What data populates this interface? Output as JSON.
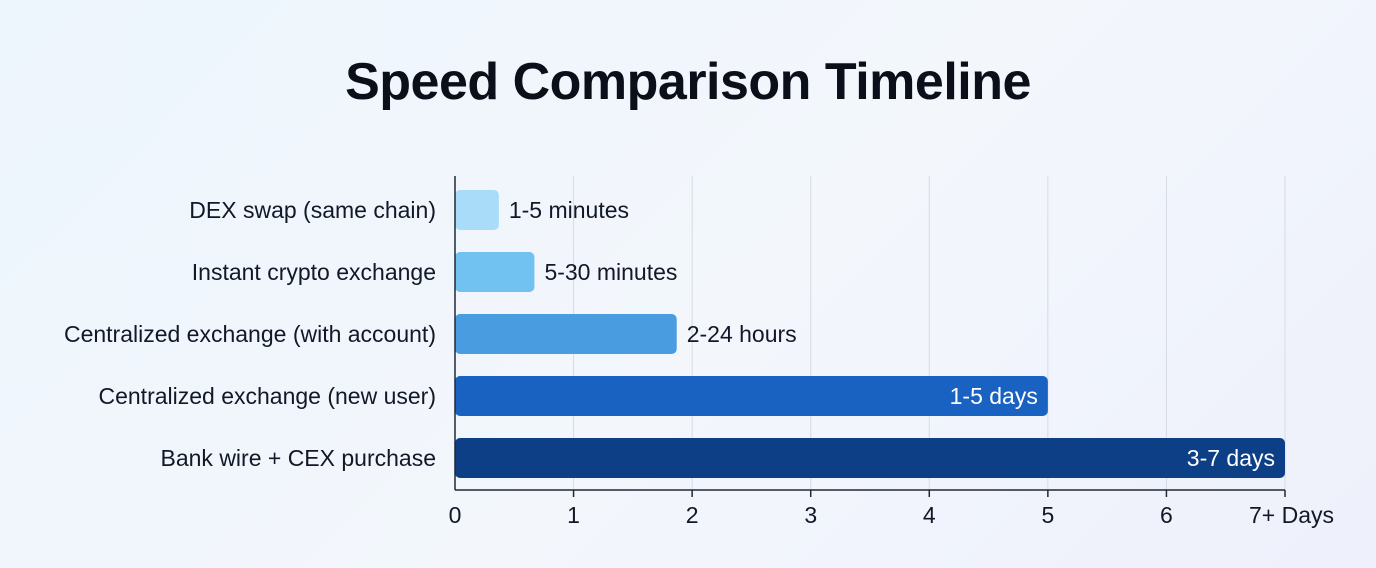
{
  "chart_data": {
    "type": "bar",
    "orientation": "horizontal",
    "title": "Speed Comparison Timeline",
    "categories": [
      "DEX swap (same chain)",
      "Instant crypto exchange",
      "Centralized exchange (with account)",
      "Centralized exchange (new user)",
      "Bank wire + CEX purchase"
    ],
    "values": [
      0.37,
      0.67,
      1.87,
      5,
      7
    ],
    "data_labels": [
      "1-5 minutes",
      "5-30 minutes",
      "2-24 hours",
      "1-5 days",
      "3-7 days"
    ],
    "bar_colors": [
      "#a9dcf8",
      "#72c2f1",
      "#4a9ce0",
      "#1962c2",
      "#0d3f87"
    ],
    "x_ticks": [
      "0",
      "1",
      "2",
      "3",
      "4",
      "5",
      "6",
      "7+ Days"
    ],
    "xlim": [
      0,
      7
    ],
    "grid": "vertical",
    "xlabel": "",
    "ylabel": ""
  }
}
